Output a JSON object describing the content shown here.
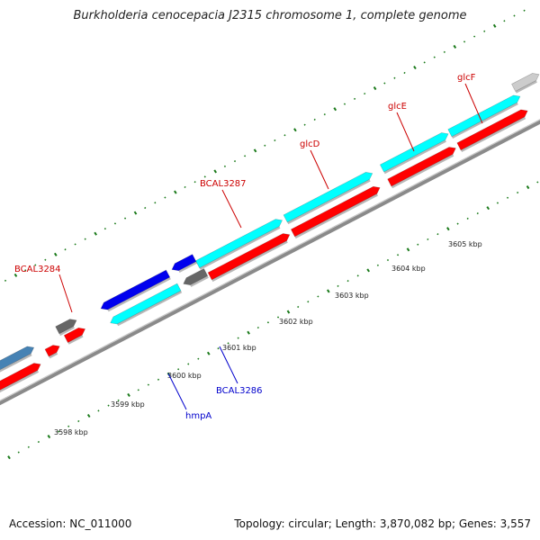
{
  "title": "Burkholderia cenocepacia J2315 chromosome 1, complete genome",
  "footer": {
    "accession": "Accession: NC_011000",
    "stats": "Topology: circular; Length: 3,870,082 bp; Genes: 3,557"
  },
  "colors": {
    "backbone": "#8a8a8a",
    "tick": "#1a7a1a",
    "forward_label": "#cc0000",
    "reverse_label": "#0000cc",
    "cds": "#ff0000",
    "gene_cyan": "#00ffff",
    "reverse_blue": "#0000ee",
    "gray": "#666666",
    "steelblue": "#4682b4"
  },
  "kbp_labels": [
    "3598 kbp",
    "3599 kbp",
    "3600 kbp",
    "3601 kbp",
    "3602 kbp",
    "3603 kbp",
    "3604 kbp",
    "3605 kbp"
  ],
  "gene_labels": [
    {
      "text": "BCAL3284",
      "color": "#cc0000"
    },
    {
      "text": "BCAL3287",
      "color": "#cc0000"
    },
    {
      "text": "glcD",
      "color": "#cc0000"
    },
    {
      "text": "glcE",
      "color": "#cc0000"
    },
    {
      "text": "glcF",
      "color": "#cc0000"
    },
    {
      "text": "hmpA",
      "color": "#0000cc"
    },
    {
      "text": "BCAL3286",
      "color": "#0000cc"
    }
  ]
}
